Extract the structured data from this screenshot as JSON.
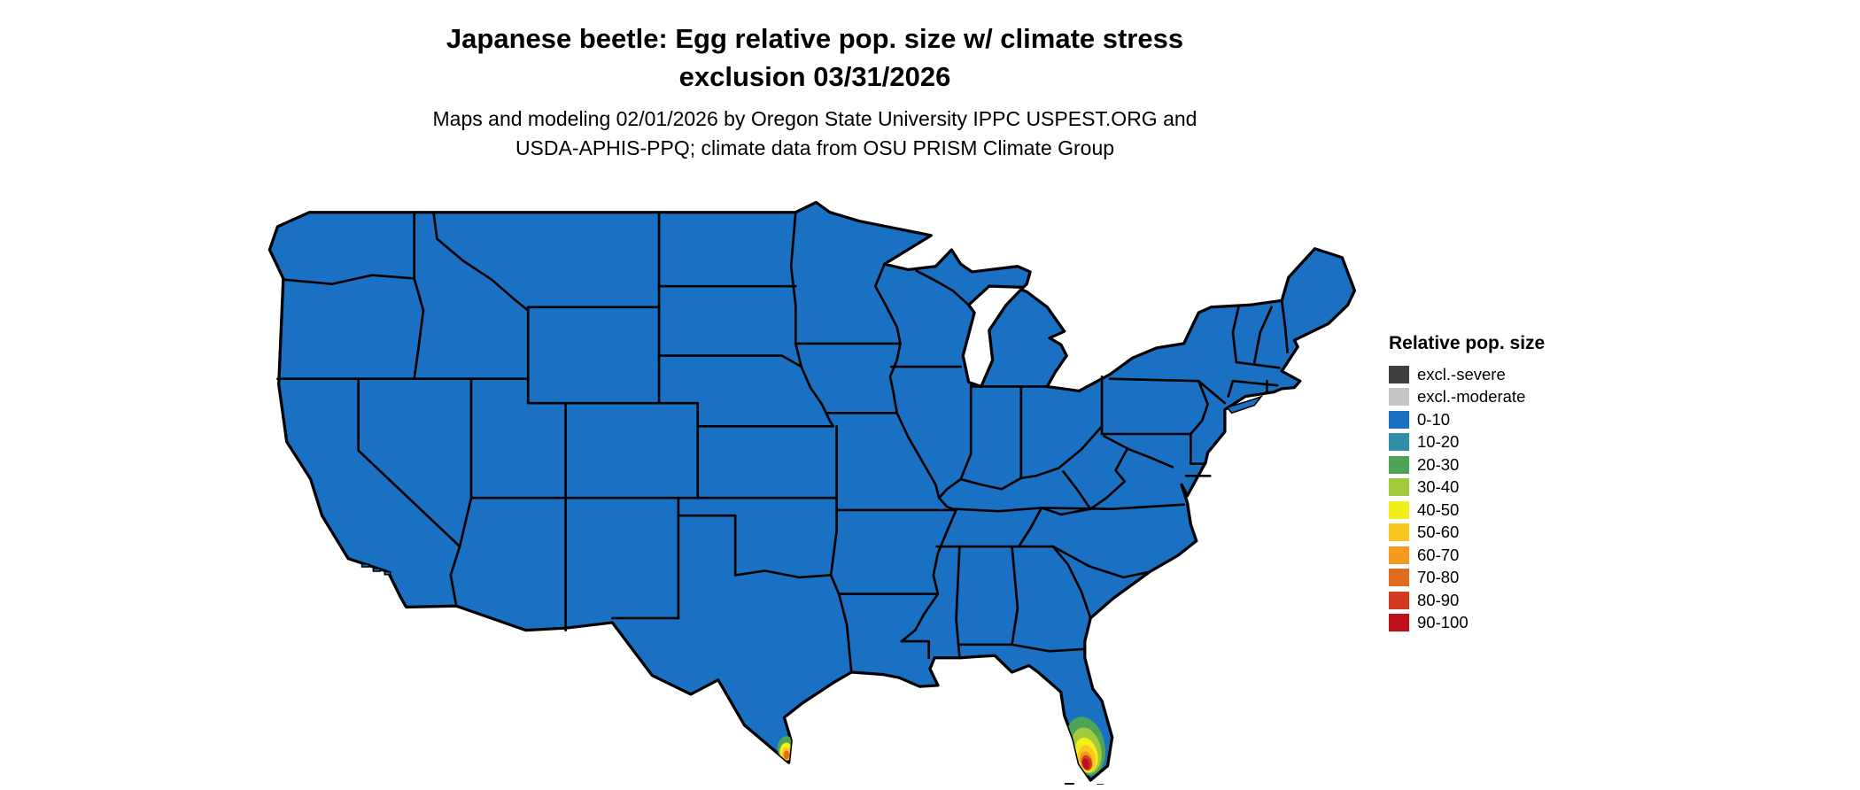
{
  "title": {
    "line1": "Japanese beetle: Egg relative pop. size w/ climate stress",
    "line2": "exclusion 03/31/2026"
  },
  "subtitle": {
    "line1": "Maps and modeling 02/01/2026 by Oregon State University IPPC USPEST.ORG and",
    "line2": "USDA-APHIS-PPQ; climate data from OSU PRISM Climate Group"
  },
  "legend": {
    "title": "Relative pop. size",
    "items": [
      {
        "label": "excl.-severe",
        "color": "#3f3f3f"
      },
      {
        "label": "excl.-moderate",
        "color": "#c6c6c6"
      },
      {
        "label": "0-10",
        "color": "#1a70c2"
      },
      {
        "label": "10-20",
        "color": "#2f8fa9"
      },
      {
        "label": "20-30",
        "color": "#4da457"
      },
      {
        "label": "30-40",
        "color": "#a3c93d"
      },
      {
        "label": "40-50",
        "color": "#f3ef1c"
      },
      {
        "label": "50-60",
        "color": "#f7c71f"
      },
      {
        "label": "60-70",
        "color": "#f59a1f"
      },
      {
        "label": "70-80",
        "color": "#e06c1d"
      },
      {
        "label": "80-90",
        "color": "#d23b20"
      },
      {
        "label": "90-100",
        "color": "#bd0f1c"
      }
    ]
  },
  "map": {
    "region": "Continental United States",
    "base_fill_label": "0-10",
    "fill_color": "#1a70c2",
    "border_color": "#000000",
    "hotspots": [
      {
        "location": "South Florida",
        "levels": "20-30 through 90-100"
      },
      {
        "location": "South Texas tip",
        "levels": "20-30 through 70-80"
      }
    ]
  }
}
